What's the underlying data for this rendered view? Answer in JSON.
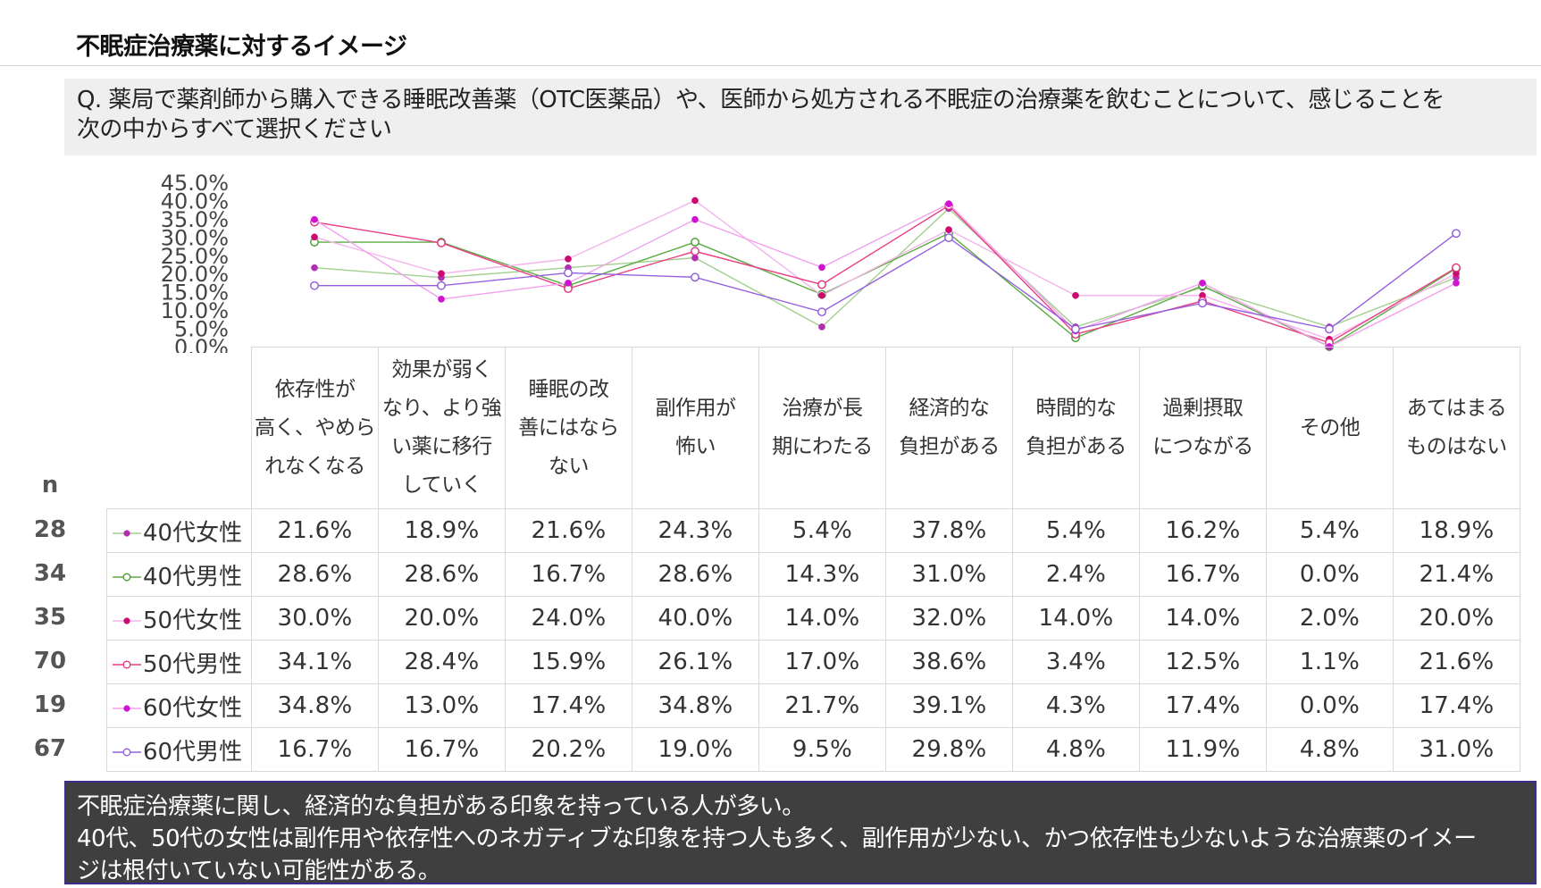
{
  "title": "不眠症治療薬に対するイメージ",
  "question": {
    "line1": "Q.  薬局で薬剤師から購入できる睡眠改善薬（OTC医薬品）や、医師から処方される不眠症の治療薬を飲むことについて、感じることを",
    "line2": "次の中からすべて選択ください"
  },
  "n_header": "n",
  "chart_data": {
    "type": "line",
    "ylim": [
      0,
      45
    ],
    "y_ticks": [
      "45.0%",
      "40.0%",
      "35.0%",
      "30.0%",
      "25.0%",
      "20.0%",
      "15.0%",
      "10.0%",
      "5.0%",
      "0.0%"
    ],
    "categories": [
      [
        "依存性が",
        "高く、やめら",
        "れなくなる"
      ],
      [
        "効果が弱く",
        "なり、より強",
        "い薬に移行",
        "していく"
      ],
      [
        "睡眠の改",
        "善にはなら",
        "ない"
      ],
      [
        "副作用が",
        "怖い"
      ],
      [
        "治療が長",
        "期にわたる"
      ],
      [
        "経済的な",
        "負担がある"
      ],
      [
        "時間的な",
        "負担がある"
      ],
      [
        "過剰摂取",
        "につながる"
      ],
      [
        "その他"
      ],
      [
        "あてはまる",
        "ものはない"
      ]
    ],
    "series": [
      {
        "name": "40代女性",
        "n": "28",
        "color": "#a3d08f",
        "marker": "#b030b0",
        "filled": true,
        "values": [
          21.6,
          18.9,
          21.6,
          24.3,
          5.4,
          37.8,
          5.4,
          16.2,
          5.4,
          18.9
        ],
        "labels": [
          "21.6%",
          "18.9%",
          "21.6%",
          "24.3%",
          "5.4%",
          "37.8%",
          "5.4%",
          "16.2%",
          "5.4%",
          "18.9%"
        ]
      },
      {
        "name": "40代男性",
        "n": "34",
        "color": "#5cac44",
        "marker": "#3f9a2c",
        "filled": false,
        "values": [
          28.6,
          28.6,
          16.7,
          28.6,
          14.3,
          31.0,
          2.4,
          16.7,
          0.0,
          21.4
        ],
        "labels": [
          "28.6%",
          "28.6%",
          "16.7%",
          "28.6%",
          "14.3%",
          "31.0%",
          "2.4%",
          "16.7%",
          "0.0%",
          "21.4%"
        ]
      },
      {
        "name": "50代女性",
        "n": "35",
        "color": "#f4b5ea",
        "marker": "#cc0a70",
        "filled": true,
        "values": [
          30.0,
          20.0,
          24.0,
          40.0,
          14.0,
          32.0,
          14.0,
          14.0,
          2.0,
          20.0
        ],
        "labels": [
          "30.0%",
          "20.0%",
          "24.0%",
          "40.0%",
          "14.0%",
          "32.0%",
          "14.0%",
          "14.0%",
          "2.0%",
          "20.0%"
        ]
      },
      {
        "name": "50代男性",
        "n": "70",
        "color": "#ea3f84",
        "marker": "#e22f7a",
        "filled": false,
        "values": [
          34.1,
          28.4,
          15.9,
          26.1,
          17.0,
          38.6,
          3.4,
          12.5,
          1.1,
          21.6
        ],
        "labels": [
          "34.1%",
          "28.4%",
          "15.9%",
          "26.1%",
          "17.0%",
          "38.6%",
          "3.4%",
          "12.5%",
          "1.1%",
          "21.6%"
        ]
      },
      {
        "name": "60代女性",
        "n": "19",
        "color": "#f2a0ee",
        "marker": "#d013d2",
        "filled": true,
        "values": [
          34.8,
          13.0,
          17.4,
          34.8,
          21.7,
          39.1,
          4.3,
          17.4,
          0.0,
          17.4
        ],
        "labels": [
          "34.8%",
          "13.0%",
          "17.4%",
          "34.8%",
          "21.7%",
          "39.1%",
          "4.3%",
          "17.4%",
          "0.0%",
          "17.4%"
        ]
      },
      {
        "name": "60代男性",
        "n": "67",
        "color": "#9660e0",
        "marker": "#8e58da",
        "filled": false,
        "values": [
          16.7,
          16.7,
          20.2,
          19.0,
          9.5,
          29.8,
          4.8,
          11.9,
          4.8,
          31.0
        ],
        "labels": [
          "16.7%",
          "16.7%",
          "20.2%",
          "19.0%",
          "9.5%",
          "29.8%",
          "4.8%",
          "11.9%",
          "4.8%",
          "31.0%"
        ]
      }
    ]
  },
  "summary": {
    "line1": "不眠症治療薬に関し、経済的な負担がある印象を持っている人が多い。",
    "line2": "40代、50代の女性は副作用や依存性へのネガティブな印象を持つ人も多く、副作用が少ない、かつ依存性も少ないような治療薬のイメー",
    "line3": "ジは根付いていない可能性がある。"
  }
}
